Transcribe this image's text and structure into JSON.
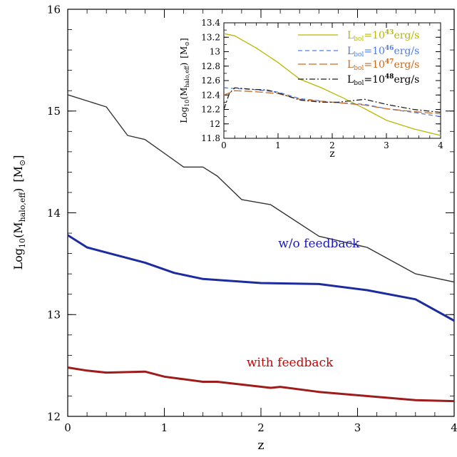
{
  "chart_data": [
    {
      "type": "line",
      "xlabel": "z",
      "ylabel_main": "Log",
      "ylabel_sub": "10",
      "ylabel_paren": "(M",
      "ylabel_paren_sub": "halo,eff",
      "ylabel_close": ")",
      "ylabel_unit_open": "[M",
      "ylabel_unit_sym": "⊙",
      "ylabel_unit_close": "]",
      "xlim": [
        0,
        4
      ],
      "ylim": [
        12,
        16
      ],
      "xticks": [
        0,
        1,
        2,
        3,
        4
      ],
      "yticks": [
        12,
        13,
        14,
        15,
        16
      ],
      "xticklabels": [
        "0",
        "1",
        "2",
        "3",
        "4"
      ],
      "yticklabels": [
        "12",
        "13",
        "14",
        "15",
        "16"
      ],
      "grid": false,
      "series": [
        {
          "key": "upper",
          "color": "#333333",
          "width": 1.4,
          "x": [
            0,
            0.4,
            0.62,
            0.8,
            1.2,
            1.4,
            1.55,
            1.8,
            2.1,
            2.6,
            3.1,
            3.6,
            4.0
          ],
          "y": [
            15.16,
            15.04,
            14.76,
            14.72,
            14.45,
            14.45,
            14.36,
            14.13,
            14.08,
            13.77,
            13.66,
            13.4,
            13.32
          ]
        },
        {
          "key": "without-feedback",
          "color": "#1c2c9e",
          "width": 3,
          "x": [
            0,
            0.2,
            0.4,
            0.8,
            1.1,
            1.4,
            2.0,
            2.6,
            3.1,
            3.6,
            4.0
          ],
          "y": [
            13.78,
            13.66,
            13.61,
            13.51,
            13.41,
            13.35,
            13.31,
            13.3,
            13.24,
            13.15,
            12.94
          ]
        },
        {
          "key": "with-feedback",
          "color": "#9e1c1c",
          "width": 3,
          "x": [
            0,
            0.2,
            0.4,
            0.8,
            1.0,
            1.4,
            1.55,
            2.1,
            2.2,
            2.6,
            3.1,
            3.6,
            4.0
          ],
          "y": [
            12.48,
            12.45,
            12.43,
            12.44,
            12.39,
            12.34,
            12.34,
            12.28,
            12.29,
            12.24,
            12.2,
            12.16,
            12.15
          ]
        }
      ],
      "annotations": [
        {
          "key": "without-feedback-label",
          "text": "w/o feedback",
          "x": 2.6,
          "y": 13.66,
          "color": "#1a1ab5"
        },
        {
          "key": "with-feedback-label",
          "text": "with feedback",
          "x": 2.3,
          "y": 12.49,
          "color": "#cc0000"
        }
      ]
    },
    {
      "type": "line",
      "inset": true,
      "xlabel": "z",
      "ylabel_main": "Log",
      "ylabel_sub": "10",
      "ylabel_paren": "(M",
      "ylabel_paren_sub": "halo,eff",
      "ylabel_close": ")",
      "ylabel_unit_open": "[M",
      "ylabel_unit_sym": "⊙",
      "ylabel_unit_close": "]",
      "xlim": [
        0,
        4
      ],
      "ylim": [
        11.8,
        13.4
      ],
      "xticks": [
        0,
        1,
        2,
        3,
        4
      ],
      "yticks": [
        11.8,
        12,
        12.2,
        12.4,
        12.6,
        12.8,
        13,
        13.2,
        13.4
      ],
      "xticklabels": [
        "0",
        "1",
        "2",
        "3",
        "4"
      ],
      "yticklabels": [
        "11.8",
        "12",
        "12.2",
        "12.4",
        "12.6",
        "12.8",
        "13",
        "13.2",
        "13.4"
      ],
      "grid": false,
      "legend": "top-right",
      "series": [
        {
          "key": "l43",
          "legend_prefix": "L",
          "legend_sub": "bol",
          "legend_eq": "=10",
          "legend_sup": "43",
          "legend_unit": "erg/s",
          "color": "#b8b800",
          "dash": "",
          "x": [
            0,
            0.2,
            0.6,
            1.0,
            1.4,
            1.8,
            2.2,
            2.6,
            3.0,
            3.5,
            4.0
          ],
          "y": [
            13.25,
            13.22,
            13.05,
            12.85,
            12.62,
            12.5,
            12.36,
            12.21,
            12.05,
            11.93,
            11.84
          ]
        },
        {
          "key": "l46",
          "legend_prefix": "L",
          "legend_sub": "bol",
          "legend_eq": "=10",
          "legend_sup": "46",
          "legend_unit": "erg/s",
          "color": "#4d7fe6",
          "dash": "6,4",
          "x": [
            0,
            0.2,
            0.5,
            1.0,
            1.4,
            2.0,
            2.6,
            3.0,
            3.5,
            4.0
          ],
          "y": [
            12.5,
            12.49,
            12.48,
            12.44,
            12.35,
            12.3,
            12.27,
            12.21,
            12.16,
            12.1
          ]
        },
        {
          "key": "l47",
          "legend_prefix": "L",
          "legend_sub": "bol",
          "legend_eq": "=10",
          "legend_sup": "47",
          "legend_unit": "erg/s",
          "color": "#cc6a1e",
          "dash": "11,4",
          "x": [
            0,
            0.2,
            0.5,
            1.0,
            1.4,
            2.0,
            2.6,
            3.0,
            3.5,
            4.0
          ],
          "y": [
            12.4,
            12.46,
            12.45,
            12.42,
            12.34,
            12.3,
            12.26,
            12.21,
            12.17,
            12.14
          ]
        },
        {
          "key": "l48",
          "legend_prefix": "L",
          "legend_sub": "bol",
          "legend_eq": "=10",
          "legend_sup": "48",
          "legend_unit": "erg/s",
          "color": "#222222",
          "dash": "8,3,2,3",
          "x": [
            0,
            0.1,
            0.2,
            0.5,
            0.8,
            1.0,
            1.4,
            1.8,
            2.1,
            2.6,
            3.0,
            3.5,
            4.0
          ],
          "y": [
            12.2,
            12.42,
            12.5,
            12.48,
            12.47,
            12.43,
            12.33,
            12.3,
            12.3,
            12.34,
            12.27,
            12.2,
            12.16
          ]
        }
      ]
    }
  ]
}
